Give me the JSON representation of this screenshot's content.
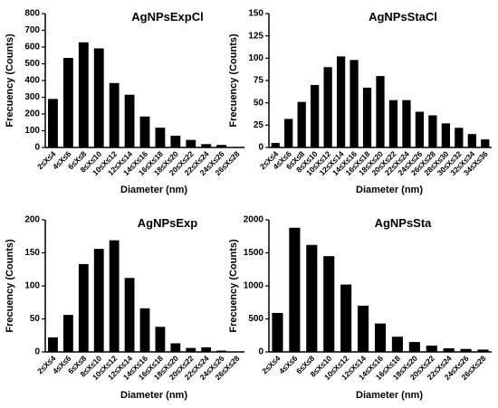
{
  "chart_data": [
    {
      "type": "bar",
      "title": "AgNPsExpCl",
      "x_label": "Diameter (nm)",
      "y_label": "Frecuency (Counts)",
      "color": "#000000",
      "categories": [
        "2≤X≤4",
        "4≤X≤6",
        "6≤X≤8",
        "8≤X≤10",
        "10≤X≤12",
        "12≤X≤14",
        "14≤X≤16",
        "16≤X≤18",
        "18≤X≤20",
        "20≤X≤22",
        "22≤X≤24",
        "24≤X≤26",
        "26≤X≤28"
      ],
      "values": [
        290,
        535,
        628,
        592,
        385,
        315,
        185,
        118,
        70,
        45,
        20,
        15,
        3
      ],
      "ylim": [
        0,
        800
      ],
      "yticks": [
        0,
        100,
        200,
        300,
        400,
        500,
        600,
        700,
        800
      ]
    },
    {
      "type": "bar",
      "title": "AgNPsStaCl",
      "x_label": "Diameter (nm)",
      "y_label": "Frecuency (Counts)",
      "color": "#000000",
      "categories": [
        "2≤X≤4",
        "4≤X≤6",
        "6≤X≤8",
        "8≤X≤10",
        "10≤X≤12",
        "12≤X≤14",
        "14≤X≤16",
        "16≤X≤18",
        "18≤X≤20",
        "20≤X≤22",
        "22≤X≤24",
        "24≤X≤26",
        "26≤X≤28",
        "28≤X≤30",
        "30≤X≤32",
        "32≤X≤34",
        "34≤X≤36"
      ],
      "values": [
        5,
        32,
        51,
        70,
        90,
        102,
        98,
        67,
        80,
        53,
        53,
        40,
        36,
        27,
        22,
        15,
        9
      ],
      "ylim": [
        0,
        150
      ],
      "yticks": [
        0,
        25,
        50,
        75,
        100,
        125,
        150
      ]
    },
    {
      "type": "bar",
      "title": "AgNPsExp",
      "x_label": "Diameter (nm)",
      "y_label": "Frecuency (Counts)",
      "color": "#000000",
      "categories": [
        "2≤X≤4",
        "4≤X≤6",
        "6≤X≤8",
        "8≤X≤10",
        "10≤X≤12",
        "12≤X≤14",
        "14≤X≤16",
        "16≤X≤18",
        "18≤X≤20",
        "20≤X≤22",
        "22≤X≤24",
        "24≤X≤26",
        "26≤X≤28"
      ],
      "values": [
        22,
        56,
        133,
        156,
        169,
        112,
        66,
        38,
        13,
        6,
        7,
        2,
        0
      ],
      "ylim": [
        0,
        200
      ],
      "yticks": [
        0,
        50,
        100,
        150,
        200
      ]
    },
    {
      "type": "bar",
      "title": "AgNPsSta",
      "x_label": "Diameter (nm)",
      "y_label": "Frecuency (Counts)",
      "color": "#000000",
      "categories": [
        "2≤X≤4",
        "4≤X≤6",
        "6≤X≤8",
        "8≤X≤10",
        "10≤X≤12",
        "12≤X≤14",
        "14≤X≤16",
        "16≤X≤18",
        "18≤X≤20",
        "20≤X≤22",
        "22≤X≤24",
        "24≤X≤26",
        "26≤X≤28"
      ],
      "values": [
        590,
        1880,
        1620,
        1450,
        1020,
        700,
        430,
        230,
        150,
        95,
        55,
        45,
        35
      ],
      "ylim": [
        0,
        2000
      ],
      "yticks": [
        0,
        500,
        1000,
        1500,
        2000
      ]
    }
  ]
}
